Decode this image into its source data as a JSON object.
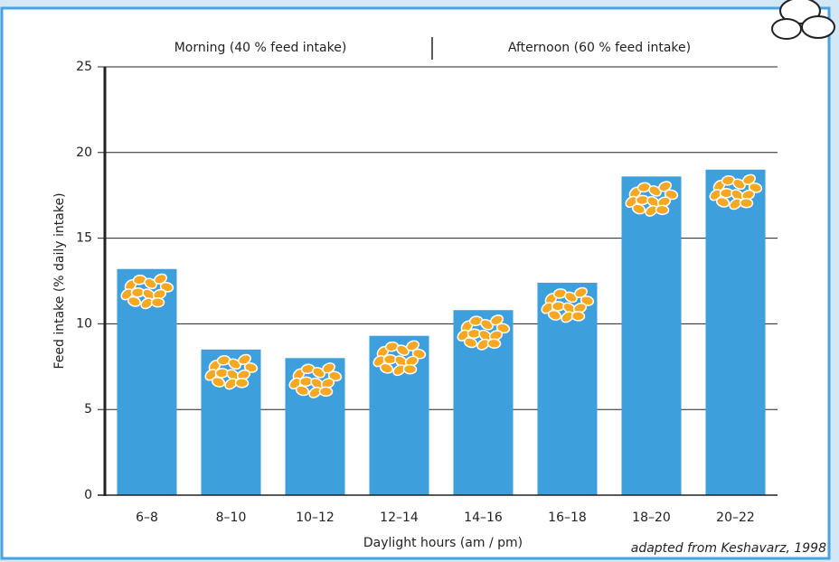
{
  "chart_data": {
    "type": "bar",
    "annotations": [
      "Morning (40 % feed intake)",
      "Afternoon (60 % feed intake)"
    ],
    "source": "adapted from Keshavarz, 1998",
    "x_label": "Daylight hours (am / pm)",
    "y_label": "Feed intake (% daily intake)",
    "categories": [
      "6–8",
      "8–10",
      "10–12",
      "12–14",
      "14–16",
      "16–18",
      "18–20",
      "20–22"
    ],
    "values": [
      13.2,
      8.5,
      8.0,
      9.3,
      10.8,
      12.4,
      18.6,
      19.0
    ],
    "color": "#3d9fdc",
    "ylim": [
      0,
      25
    ],
    "yticks": [
      0,
      5,
      10,
      15,
      20,
      25
    ],
    "grid": true
  }
}
